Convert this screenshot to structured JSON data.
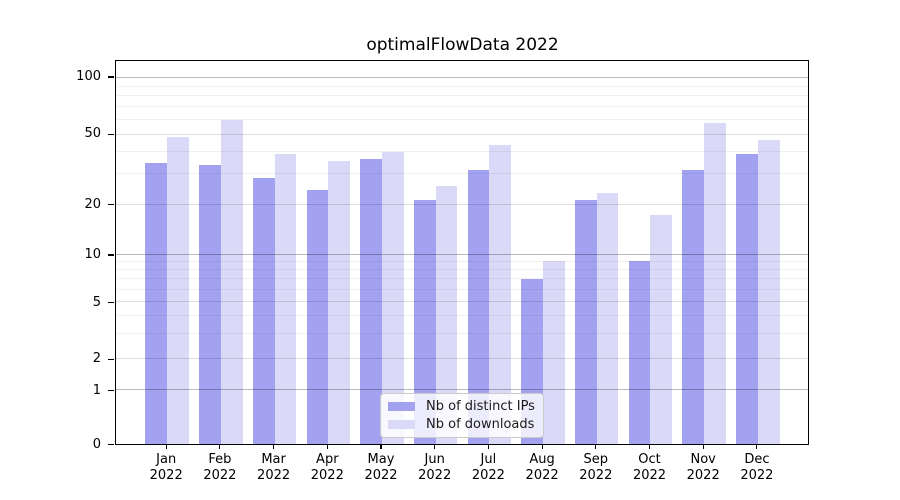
{
  "title": "optimalFlowData 2022",
  "chart_data": {
    "type": "bar",
    "title": "optimalFlowData 2022",
    "categories": [
      "Jan",
      "Feb",
      "Mar",
      "Apr",
      "May",
      "Jun",
      "Jul",
      "Aug",
      "Sep",
      "Oct",
      "Nov",
      "Dec"
    ],
    "category_year": "2022",
    "series": [
      {
        "name": "Nb of distinct IPs",
        "color": "#a2a2f0",
        "values": [
          34,
          33,
          28,
          24,
          36,
          21,
          31,
          7,
          21,
          9,
          31,
          38
        ]
      },
      {
        "name": "Nb of downloads",
        "color": "#dadaf8",
        "values": [
          48,
          59,
          38,
          35,
          39,
          25,
          43,
          9,
          23,
          17,
          57,
          46
        ]
      }
    ],
    "y_axis": {
      "scale": "symlog",
      "major_ticks": [
        0,
        1,
        2,
        5,
        10,
        20,
        50,
        100
      ],
      "minor_ticks": [
        3,
        4,
        6,
        7,
        8,
        9,
        30,
        40,
        60,
        70,
        80,
        90
      ],
      "ylim": [
        0,
        123
      ]
    },
    "x_axis": {
      "tick_label_lines": 2
    },
    "legend": {
      "position": "lower center",
      "entries": [
        "Nb of distinct IPs",
        "Nb of downloads"
      ]
    },
    "grid": true,
    "colors": {
      "spine": "#000000",
      "text": "#000000",
      "background": "#ffffff"
    }
  }
}
